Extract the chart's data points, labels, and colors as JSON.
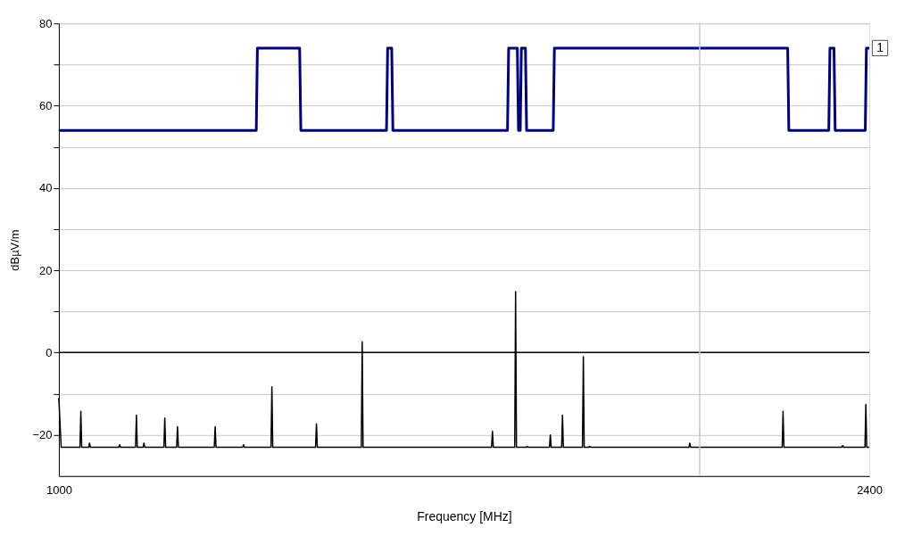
{
  "chart_data": {
    "type": "line",
    "xlabel": "Frequency [MHz]",
    "ylabel": "dBµV/m",
    "xlim": [
      1000,
      2400
    ],
    "xticks": [
      1000,
      2400
    ],
    "ylim": [
      -30,
      80
    ],
    "yticks": [
      -20,
      {
        "value": -10,
        "label": null
      },
      0,
      {
        "value": 10,
        "label": null
      },
      20,
      {
        "value": 30,
        "label": null
      },
      40,
      {
        "value": 50,
        "label": null
      },
      60,
      {
        "value": 70,
        "label": null
      },
      80
    ],
    "grid": "y",
    "marker": "none",
    "line_style": "solid",
    "series": [
      {
        "type": "line",
        "color": "#000080",
        "x": [
          1000,
          1341,
          1343,
          1416,
          1418,
          1566,
          1568,
          1575,
          1577,
          1775,
          1777,
          1792,
          1794,
          1797,
          1799,
          1806,
          1808,
          1854,
          1856,
          2259,
          2261,
          2330,
          2332,
          2339,
          2341,
          2393,
          2395,
          2400
        ],
        "values": [
          54,
          54,
          74,
          74,
          54,
          54,
          74,
          74,
          54,
          54,
          74,
          74,
          54,
          54,
          74,
          74,
          54,
          54,
          74,
          74,
          54,
          54,
          74,
          74,
          54,
          54,
          74,
          74
        ]
      },
      {
        "color": "#000000",
        "x": [
          1000,
          1002,
          1004,
          1036.5,
          1038,
          1039.5,
          1051.5,
          1053,
          1054.5,
          1103.5,
          1105,
          1106.5,
          1132.5,
          1134,
          1135.5,
          1145.5,
          1147,
          1148.5,
          1181.5,
          1183,
          1184.5,
          1203.5,
          1205,
          1206.5,
          1268.5,
          1270,
          1271.5,
          1317.5,
          1319,
          1320.5,
          1366.5,
          1368,
          1369.5,
          1443.5,
          1445,
          1446.5,
          1522.5,
          1524,
          1525.5,
          1747.5,
          1749,
          1750.5,
          1787.5,
          1789,
          1790.5,
          1807.5,
          1809,
          1810.5,
          1847.5,
          1849,
          1850.5,
          1868.5,
          1870,
          1871.5,
          1904.5,
          1906,
          1907.5,
          1915.5,
          1917,
          1918.5,
          2088.5,
          2090,
          2091.5,
          2249.5,
          2251,
          2252.5,
          2352.5,
          2354,
          2355.5,
          2392.5,
          2394,
          2395.5,
          2400
        ],
        "values": [
          -11,
          -17,
          -23,
          -23,
          -14.3,
          -23,
          -23,
          -22,
          -23,
          -23,
          -22.4,
          -23,
          -23,
          -15.2,
          -23,
          -23,
          -22,
          -23,
          -23,
          -15.9,
          -23,
          -23,
          -18,
          -23,
          -23,
          -18,
          -23,
          -23,
          -22.4,
          -23,
          -23,
          -8.3,
          -23,
          -23,
          -17.3,
          -23,
          -23,
          2.6,
          -23,
          -23,
          -19.1,
          -23,
          -23,
          14.8,
          -23,
          -23,
          -22.8,
          -23,
          -23,
          -20,
          -23,
          -23,
          -15.2,
          -23,
          -23,
          -1,
          -23,
          -23,
          -22.8,
          -23,
          -23,
          -22,
          -23,
          -23,
          -14.3,
          -23,
          -23,
          -22.6,
          -23,
          -23,
          -12.6,
          -23,
          -23
        ]
      }
    ],
    "ref_lines": [
      {
        "axis": "y",
        "value": 0,
        "color": "#000000"
      },
      {
        "axis": "x",
        "value": 2107,
        "color": "#c8c8c8"
      }
    ],
    "annotations": [
      {
        "text": "1",
        "x": 2400,
        "y": 74
      }
    ]
  }
}
